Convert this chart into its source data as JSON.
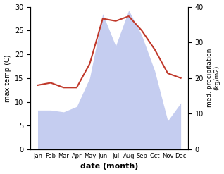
{
  "months": [
    "Jan",
    "Feb",
    "Mar",
    "Apr",
    "May",
    "Jun",
    "Jul",
    "Aug",
    "Sep",
    "Oct",
    "Nov",
    "Dec"
  ],
  "max_temp": [
    13.5,
    14,
    13,
    13,
    18,
    27.5,
    27,
    28,
    25,
    21,
    16,
    15
  ],
  "precipitation": [
    11,
    11,
    10.5,
    12,
    20,
    38,
    29,
    39,
    32,
    22,
    8,
    13
  ],
  "temp_color": "#c0392b",
  "precip_fill_color": "#c5cdf0",
  "temp_ylim": [
    0,
    30
  ],
  "precip_ylim": [
    0,
    40
  ],
  "xlabel": "date (month)",
  "ylabel_left": "max temp (C)",
  "ylabel_right": "med. precipitation\n(kg/m2)",
  "bg_color": "#ffffff",
  "temp_yticks": [
    0,
    5,
    10,
    15,
    20,
    25,
    30
  ],
  "precip_yticks": [
    0,
    10,
    20,
    30,
    40
  ]
}
